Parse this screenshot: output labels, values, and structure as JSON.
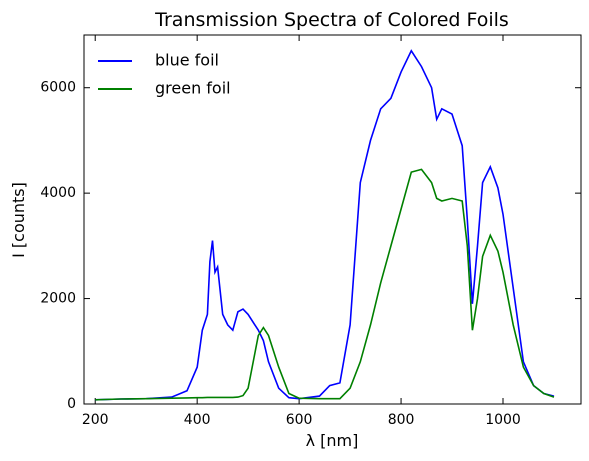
{
  "chart_data": {
    "type": "line",
    "title": "Transmission Spectra of Colored Foils",
    "x_label": "λ [nm]",
    "y_label": "I [counts]",
    "x": [
      200,
      250,
      300,
      350,
      380,
      400,
      410,
      420,
      425,
      430,
      435,
      440,
      450,
      460,
      470,
      480,
      490,
      500,
      520,
      530,
      540,
      560,
      580,
      600,
      640,
      660,
      680,
      700,
      720,
      740,
      760,
      780,
      800,
      820,
      840,
      860,
      870,
      880,
      900,
      920,
      930,
      940,
      950,
      960,
      975,
      990,
      1000,
      1020,
      1040,
      1060,
      1080,
      1100
    ],
    "series": [
      {
        "name": "blue foil",
        "color": "#0000ff",
        "values": [
          80,
          95,
          100,
          130,
          250,
          700,
          1400,
          1700,
          2700,
          3100,
          2500,
          2600,
          1700,
          1500,
          1400,
          1750,
          1800,
          1700,
          1400,
          1200,
          800,
          300,
          120,
          100,
          150,
          350,
          400,
          1500,
          4200,
          5000,
          5600,
          5800,
          6300,
          6700,
          6400,
          6000,
          5400,
          5600,
          5500,
          4900,
          3500,
          1900,
          3000,
          4200,
          4500,
          4100,
          3600,
          2200,
          800,
          350,
          200,
          150
        ]
      },
      {
        "name": "green foil",
        "color": "#008000",
        "values": [
          80,
          95,
          100,
          110,
          115,
          120,
          120,
          125,
          125,
          125,
          125,
          125,
          125,
          125,
          125,
          130,
          160,
          300,
          1300,
          1450,
          1300,
          700,
          200,
          110,
          100,
          100,
          100,
          300,
          800,
          1500,
          2300,
          3000,
          3700,
          4400,
          4450,
          4200,
          3900,
          3850,
          3900,
          3850,
          3000,
          1400,
          2000,
          2800,
          3200,
          2900,
          2500,
          1500,
          700,
          350,
          200,
          130
        ]
      }
    ],
    "xlim": [
      178,
      1153
    ],
    "ylim": [
      0,
      7000
    ],
    "xticks": [
      200,
      400,
      600,
      800,
      1000
    ],
    "yticks": [
      0,
      2000,
      4000,
      6000
    ],
    "legend": "upper left",
    "grid": false
  }
}
